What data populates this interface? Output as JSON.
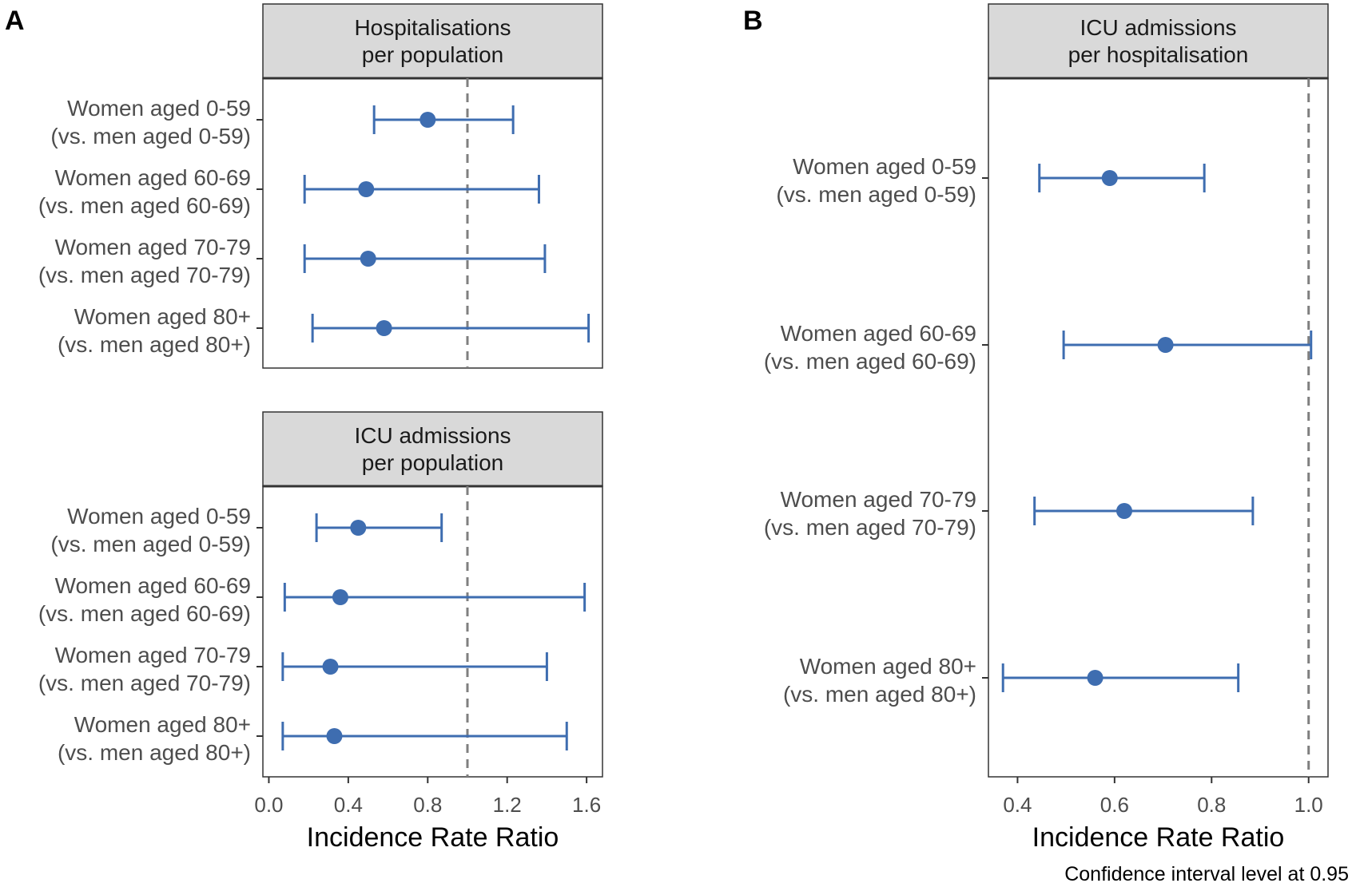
{
  "chart_data": [
    {
      "type": "forest",
      "panel_letter": "A",
      "strip_title_lines": [
        "Hospitalisations",
        "per population"
      ],
      "categories": [
        [
          "Women aged 0-59",
          "(vs. men aged 0-59)"
        ],
        [
          "Women aged 60-69",
          "(vs. men aged 60-69)"
        ],
        [
          "Women aged 70-79",
          "(vs. men aged 70-79)"
        ],
        [
          "Women aged 80+",
          "(vs. men aged 80+)"
        ]
      ],
      "estimates": [
        0.8,
        0.49,
        0.5,
        0.58
      ],
      "ci_lower": [
        0.53,
        0.18,
        0.18,
        0.22
      ],
      "ci_upper": [
        1.23,
        1.36,
        1.39,
        1.61
      ],
      "reference_line": 1.0,
      "xlim": [
        -0.03,
        1.68
      ],
      "x_ticks": [
        0.0,
        0.4,
        0.8,
        1.2,
        1.6
      ],
      "x_tick_labels": [],
      "xlabel": "",
      "color": "#3e6db0"
    },
    {
      "type": "forest",
      "panel_letter": "",
      "strip_title_lines": [
        "ICU admissions",
        "per population"
      ],
      "categories": [
        [
          "Women aged 0-59",
          "(vs. men aged 0-59)"
        ],
        [
          "Women aged 60-69",
          "(vs. men aged 60-69)"
        ],
        [
          "Women aged 70-79",
          "(vs. men aged 70-79)"
        ],
        [
          "Women aged 80+",
          "(vs. men aged 80+)"
        ]
      ],
      "estimates": [
        0.45,
        0.36,
        0.31,
        0.33
      ],
      "ci_lower": [
        0.24,
        0.08,
        0.07,
        0.07
      ],
      "ci_upper": [
        0.87,
        1.59,
        1.4,
        1.5
      ],
      "reference_line": 1.0,
      "xlim": [
        -0.03,
        1.68
      ],
      "x_ticks": [
        0.0,
        0.4,
        0.8,
        1.2,
        1.6
      ],
      "x_tick_labels": [
        "0.0",
        "0.4",
        "0.8",
        "1.2",
        "1.6"
      ],
      "xlabel": "Incidence Rate Ratio",
      "color": "#3e6db0"
    },
    {
      "type": "forest",
      "panel_letter": "B",
      "strip_title_lines": [
        "ICU admissions",
        "per hospitalisation"
      ],
      "categories": [
        [
          "Women aged 0-59",
          "(vs. men aged 0-59)"
        ],
        [
          "Women aged 60-69",
          "(vs. men aged 60-69)"
        ],
        [
          "Women aged 70-79",
          "(vs. men aged 70-79)"
        ],
        [
          "Women aged 80+",
          "(vs. men aged 80+)"
        ]
      ],
      "estimates": [
        0.59,
        0.705,
        0.62,
        0.56
      ],
      "ci_lower": [
        0.445,
        0.495,
        0.435,
        0.37
      ],
      "ci_upper": [
        0.785,
        1.005,
        0.885,
        0.855
      ],
      "reference_line": 1.0,
      "xlim": [
        0.34,
        1.04
      ],
      "x_ticks": [
        0.4,
        0.6,
        0.8,
        1.0
      ],
      "x_tick_labels": [
        "0.4",
        "0.6",
        "0.8",
        "1.0"
      ],
      "xlabel": "Incidence Rate Ratio",
      "color": "#3e6db0"
    }
  ],
  "caption": "Confidence interval level at 0.95",
  "colors": {
    "point": "#3e6db0",
    "reference_line": "#7f7f7f",
    "strip_fill": "#d9d9d9",
    "panel_border": "#333333",
    "label_text": "#4d4d4d"
  }
}
